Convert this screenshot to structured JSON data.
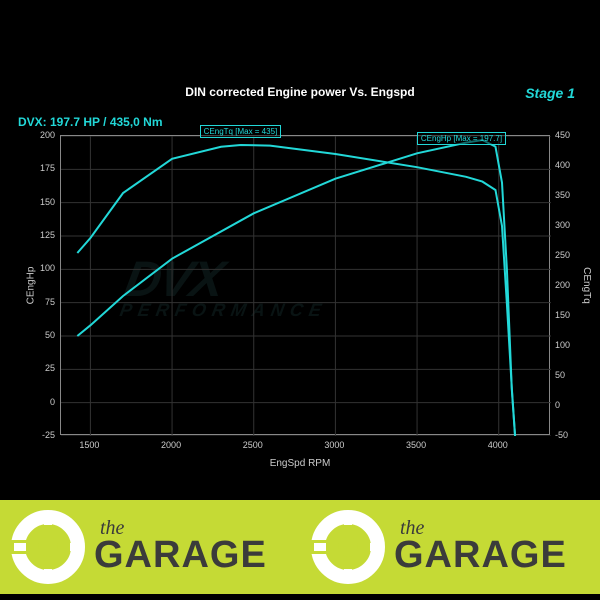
{
  "chart": {
    "type": "line",
    "title": "DIN corrected Engine power Vs. Engspd",
    "stage_label": "Stage 1",
    "dvx_label": "DVX:  197.7 HP / 435,0 Nm",
    "x_label": "EngSpd RPM",
    "y_label_left": "CEngHp",
    "y_label_right": "CEngTq",
    "background_color": "#000000",
    "grid_color": "#333333",
    "axis_color": "#888888",
    "tick_color": "#cccccc",
    "line_color": "#22d8d8",
    "line_width": 2,
    "xlim": [
      1320,
      4320
    ],
    "x_ticks": [
      1500,
      2000,
      2500,
      3000,
      3500,
      4000
    ],
    "ylim_left": [
      -25,
      200
    ],
    "y_ticks_left": [
      -25,
      0,
      25,
      50,
      75,
      100,
      125,
      150,
      175,
      200
    ],
    "ylim_right": [
      -50,
      450
    ],
    "y_ticks_right": [
      -50,
      0,
      50,
      100,
      150,
      200,
      250,
      300,
      350,
      400,
      450
    ],
    "marker_tq": {
      "label": "CEngTq [Max = 435]",
      "x": 2420,
      "y_left": 197
    },
    "marker_hp": {
      "label": "CEngHp [Max = 197.7]",
      "x": 3750,
      "y_left": 192
    },
    "hp_series": {
      "rpm": [
        1420,
        1500,
        1700,
        2000,
        2500,
        3000,
        3500,
        3800,
        3900,
        3980,
        4020,
        4050,
        4080,
        4100
      ],
      "value": [
        50,
        58,
        80,
        108,
        142,
        168,
        187,
        195,
        197,
        192,
        165,
        100,
        10,
        -25
      ]
    },
    "tq_series": {
      "rpm": [
        1420,
        1500,
        1700,
        2000,
        2300,
        2420,
        2600,
        3000,
        3500,
        3800,
        3900,
        3980,
        4020,
        4050,
        4080,
        4100
      ],
      "value": [
        255,
        280,
        355,
        412,
        432,
        435,
        434,
        420,
        398,
        382,
        374,
        360,
        300,
        170,
        30,
        -50
      ]
    }
  },
  "watermark": {
    "main": "DVX",
    "sub": "PERFORMANCE"
  },
  "footer": {
    "the": "the",
    "garage": "GARAGE",
    "bg_color": "#c5da35",
    "text_color": "#3b3b3b"
  }
}
